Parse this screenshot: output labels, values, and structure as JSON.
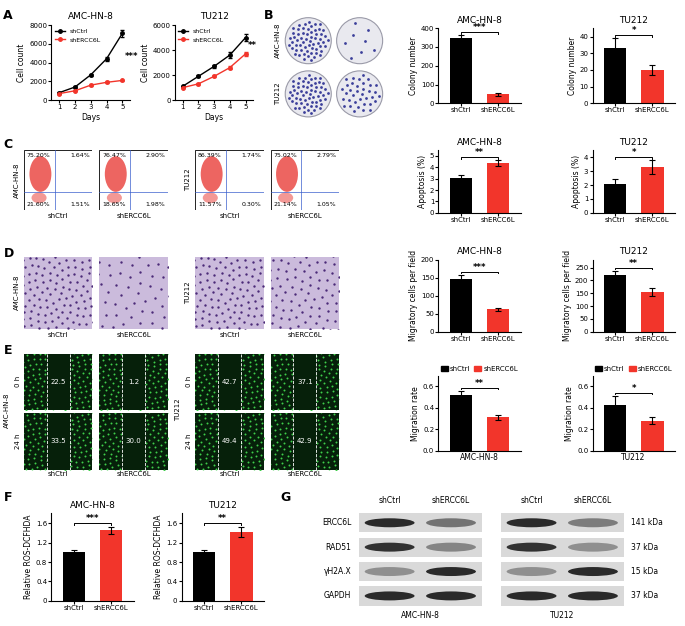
{
  "panel_labels": [
    "A",
    "B",
    "C",
    "D",
    "E",
    "F",
    "G"
  ],
  "chart_data": [
    {
      "type": "line",
      "title": "AMC-HN-8",
      "x": [
        1,
        2,
        3,
        4,
        5
      ],
      "xlabel": "Days",
      "ylabel": "Cell count",
      "xlim": [
        0.5,
        5.5
      ],
      "xticks": [
        1,
        2,
        3,
        4,
        5
      ],
      "ylim": [
        0,
        8000
      ],
      "yticks": [
        0,
        2000,
        4000,
        6000,
        8000
      ],
      "legend": "upper left",
      "marker": "o",
      "significance": "***",
      "series": [
        {
          "name": "shCtrl",
          "color": "#000000",
          "values": [
            800,
            1400,
            2700,
            4400,
            7100
          ],
          "errors": [
            50,
            80,
            120,
            180,
            350
          ]
        },
        {
          "name": "shERCC6L",
          "color": "#f2352b",
          "values": [
            700,
            1000,
            1600,
            1900,
            2100
          ],
          "errors": [
            40,
            60,
            80,
            90,
            100
          ]
        }
      ]
    },
    {
      "type": "line",
      "title": "TU212",
      "x": [
        1,
        2,
        3,
        4,
        5
      ],
      "xlabel": "Days",
      "ylabel": "Cell count",
      "xlim": [
        0.5,
        5.5
      ],
      "xticks": [
        1,
        2,
        3,
        4,
        5
      ],
      "ylim": [
        0,
        6000
      ],
      "yticks": [
        0,
        2000,
        4000,
        6000
      ],
      "legend": "upper left",
      "marker": "o",
      "significance": "**",
      "series": [
        {
          "name": "shCtrl",
          "color": "#000000",
          "values": [
            1100,
            1900,
            2700,
            3600,
            5000
          ],
          "errors": [
            60,
            80,
            120,
            250,
            250
          ]
        },
        {
          "name": "shERCC6L",
          "color": "#f2352b",
          "values": [
            1000,
            1300,
            1900,
            2600,
            3700
          ],
          "errors": [
            50,
            60,
            90,
            120,
            150
          ]
        }
      ]
    },
    {
      "type": "bar",
      "title": "AMC-HN-8",
      "ylabel": "Colony number",
      "categories": [
        "shCtrl",
        "shERCC6L"
      ],
      "values": [
        350,
        48
      ],
      "errors": [
        12,
        8
      ],
      "colors": [
        "#000000",
        "#f2352b"
      ],
      "ylim": [
        0,
        400
      ],
      "yticks": [
        0,
        100,
        200,
        300,
        400
      ],
      "significance": "***"
    },
    {
      "type": "bar",
      "title": "TU212",
      "ylabel": "Colony number",
      "categories": [
        "shCtrl",
        "shERCC6L"
      ],
      "values": [
        33,
        20
      ],
      "errors": [
        6,
        3
      ],
      "colors": [
        "#000000",
        "#f2352b"
      ],
      "ylim": [
        0,
        45
      ],
      "yticks": [
        0,
        10,
        20,
        30,
        40
      ],
      "significance": "*"
    },
    {
      "type": "bar",
      "title": "AMC-HN-8",
      "ylabel": "Apoptosis (%)",
      "categories": [
        "shCtrl",
        "shERCC6L"
      ],
      "values": [
        3.1,
        4.4
      ],
      "errors": [
        0.25,
        0.25
      ],
      "colors": [
        "#000000",
        "#f2352b"
      ],
      "ylim": [
        0,
        5.5
      ],
      "yticks": [
        0,
        1,
        2,
        3,
        4,
        5
      ],
      "significance": "**"
    },
    {
      "type": "bar",
      "title": "TU212",
      "ylabel": "Apoptosis (%)",
      "categories": [
        "shCtrl",
        "shERCC6L"
      ],
      "values": [
        2.1,
        3.3
      ],
      "errors": [
        0.3,
        0.5
      ],
      "colors": [
        "#000000",
        "#f2352b"
      ],
      "ylim": [
        0,
        4.5
      ],
      "yticks": [
        0,
        1,
        2,
        3,
        4
      ],
      "significance": "*"
    },
    {
      "type": "bar",
      "title": "AMC-HN-8",
      "ylabel": "Migratory cells per field",
      "categories": [
        "shCtrl",
        "shERCC6L"
      ],
      "values": [
        148,
        62
      ],
      "errors": [
        10,
        3
      ],
      "colors": [
        "#000000",
        "#f2352b"
      ],
      "ylim": [
        0,
        200
      ],
      "yticks": [
        0,
        50,
        100,
        150,
        200
      ],
      "significance": "***"
    },
    {
      "type": "bar",
      "title": "TU212",
      "ylabel": "Migratory cells per field",
      "categories": [
        "shCtrl",
        "shERCC6L"
      ],
      "values": [
        222,
        155
      ],
      "errors": [
        15,
        15
      ],
      "colors": [
        "#000000",
        "#f2352b"
      ],
      "ylim": [
        0,
        280
      ],
      "yticks": [
        0,
        50,
        100,
        150,
        200,
        250
      ],
      "significance": "**"
    },
    {
      "type": "bar",
      "xlabel": "AMC-HN-8",
      "ylabel": "Migration rate",
      "categories": [
        "shCtrl",
        "shERCC6L"
      ],
      "values": [
        0.52,
        0.31
      ],
      "errors": [
        0.04,
        0.02
      ],
      "colors": [
        "#000000",
        "#f2352b"
      ],
      "ylim": [
        0,
        0.7
      ],
      "yticks": [
        {
          "value": 0,
          "label": "0.0"
        },
        0.2,
        0.4,
        0.6
      ],
      "significance": "**",
      "legend": "lower center",
      "tick_labels": "y"
    },
    {
      "type": "bar",
      "xlabel": "TU212",
      "ylabel": "Migration rate",
      "categories": [
        "shCtrl",
        "shERCC6L"
      ],
      "values": [
        0.43,
        0.28
      ],
      "errors": [
        0.08,
        0.03
      ],
      "colors": [
        "#000000",
        "#f2352b"
      ],
      "ylim": [
        0,
        0.7
      ],
      "yticks": [
        {
          "value": 0,
          "label": "0.0"
        },
        0.2,
        0.4,
        0.6
      ],
      "significance": "*",
      "legend": "lower center",
      "tick_labels": "y"
    },
    {
      "type": "bar",
      "title": "AMC-HN-8",
      "ylabel": "Relative ROS-DCFHDA",
      "categories": [
        "shCtrl",
        "shERCC6L"
      ],
      "values": [
        1.0,
        1.45
      ],
      "errors": [
        0.05,
        0.07
      ],
      "colors": [
        "#000000",
        "#f2352b"
      ],
      "ylim": [
        0,
        1.8
      ],
      "yticks": [
        0,
        0.4,
        0.8,
        1.2,
        1.6
      ],
      "significance": "***"
    },
    {
      "type": "bar",
      "title": "TU212",
      "ylabel": "Relative ROS-DCFHDA",
      "categories": [
        "shCtrl",
        "shERCC6L"
      ],
      "values": [
        1.0,
        1.42
      ],
      "errors": [
        0.04,
        0.1
      ],
      "colors": [
        "#000000",
        "#f2352b"
      ],
      "ylim": [
        0,
        1.8
      ],
      "yticks": [
        0,
        0.4,
        0.8,
        1.2,
        1.6
      ],
      "significance": "**"
    }
  ],
  "colony_images": {
    "rows": [
      "AMC-HN-8",
      "TU212"
    ]
  },
  "flow_cytometry": [
    {
      "cell": "AMC-HN-8",
      "panels": [
        {
          "group": "shCtrl",
          "quadrants": {
            "upper_left": "75.20%",
            "upper_right": "1.64%",
            "lower_left": "21.60%",
            "lower_right": "1.51%"
          }
        },
        {
          "group": "shERCC6L",
          "quadrants": {
            "upper_left": "76.47%",
            "upper_right": "2.90%",
            "lower_left": "18.65%",
            "lower_right": "1.98%"
          }
        }
      ]
    },
    {
      "cell": "TU212",
      "panels": [
        {
          "group": "shCtrl",
          "quadrants": {
            "upper_left": "86.39%",
            "upper_right": "1.74%",
            "lower_left": "11.57%",
            "lower_right": "0.30%"
          }
        },
        {
          "group": "shERCC6L",
          "quadrants": {
            "upper_left": "75.02%",
            "upper_right": "2.79%",
            "lower_left": "21.14%",
            "lower_right": "1.05%"
          }
        }
      ]
    }
  ],
  "transwell_images": {
    "cells": [
      "AMC-HN-8",
      "TU212"
    ],
    "groups": [
      "shCtrl",
      "shERCC6L"
    ]
  },
  "wound_images": {
    "times": [
      "0 h",
      "24 h"
    ],
    "cells": [
      {
        "cell": "AMC-HN-8",
        "groups": [
          {
            "group": "shCtrl",
            "gaps": [
              22.5,
              33.5
            ]
          },
          {
            "group": "shERCC6L",
            "gaps": [
              1.2,
              30.0
            ]
          }
        ]
      },
      {
        "cell": "TU212",
        "groups": [
          {
            "group": "shCtrl",
            "gaps": [
              42.7,
              49.4
            ]
          },
          {
            "group": "shERCC6L",
            "gaps": [
              37.1,
              42.9
            ]
          }
        ]
      }
    ]
  },
  "western_blot": {
    "cells": [
      "AMC-HN-8",
      "TU212"
    ],
    "groups": [
      "shCtrl",
      "shERCC6L"
    ],
    "proteins": [
      {
        "name": "ERCC6L",
        "size": "141 kDa",
        "intensity": [
          0.95,
          0.55,
          0.95,
          0.5
        ]
      },
      {
        "name": "RAD51",
        "size": "37 kDa",
        "intensity": [
          0.9,
          0.45,
          0.9,
          0.4
        ]
      },
      {
        "name": "γH2A.X",
        "size": "15 kDa",
        "intensity": [
          0.4,
          0.95,
          0.4,
          0.95
        ]
      },
      {
        "name": "GAPDH",
        "size": "37 kDa",
        "intensity": [
          0.95,
          0.95,
          0.95,
          0.95
        ]
      }
    ]
  }
}
